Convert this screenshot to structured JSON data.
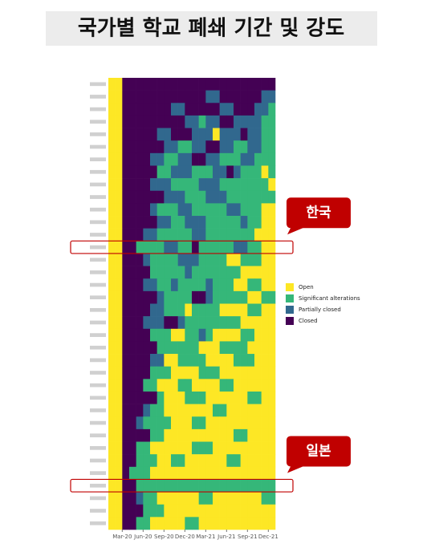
{
  "chart_data": {
    "type": "heatmap",
    "title": "국가별 학교 폐쇄 기간 및 강도",
    "categories": [
      null,
      null,
      null,
      null,
      null,
      null,
      null,
      null,
      null,
      null,
      null,
      null,
      null,
      null,
      null,
      null,
      null,
      null,
      null,
      null,
      null,
      null,
      null,
      null,
      null,
      null,
      null,
      null,
      null,
      null,
      null,
      null,
      null,
      null,
      null,
      null
    ],
    "levels": [
      {
        "name": "Open",
        "value": 0,
        "color": "#fde725"
      },
      {
        "name": "Significant alterations",
        "value": 1,
        "color": "#35b779"
      },
      {
        "name": "Partially closed",
        "value": 2,
        "color": "#31688e"
      },
      {
        "name": "Closed",
        "value": 3,
        "color": "#440154"
      }
    ],
    "rows": [
      [
        0,
        0,
        3,
        3,
        3,
        3,
        3,
        3,
        3,
        3,
        3,
        3,
        3,
        3,
        3,
        3,
        3,
        3,
        3,
        3,
        3,
        3,
        3,
        3
      ],
      [
        0,
        0,
        3,
        3,
        3,
        3,
        3,
        3,
        3,
        3,
        3,
        3,
        3,
        3,
        2,
        2,
        3,
        3,
        3,
        3,
        3,
        3,
        2,
        2
      ],
      [
        0,
        0,
        3,
        3,
        3,
        3,
        3,
        3,
        3,
        2,
        2,
        3,
        3,
        3,
        3,
        3,
        2,
        2,
        3,
        3,
        3,
        2,
        2,
        1
      ],
      [
        0,
        0,
        3,
        3,
        3,
        3,
        3,
        3,
        3,
        3,
        3,
        2,
        2,
        1,
        2,
        2,
        3,
        3,
        2,
        2,
        2,
        2,
        1,
        1
      ],
      [
        0,
        0,
        3,
        3,
        3,
        3,
        3,
        2,
        2,
        3,
        3,
        3,
        2,
        2,
        2,
        0,
        2,
        2,
        2,
        3,
        2,
        2,
        1,
        1
      ],
      [
        0,
        0,
        3,
        3,
        3,
        3,
        3,
        3,
        2,
        2,
        1,
        1,
        2,
        2,
        3,
        3,
        2,
        2,
        1,
        1,
        2,
        2,
        1,
        1
      ],
      [
        0,
        0,
        3,
        3,
        3,
        3,
        2,
        2,
        1,
        1,
        2,
        2,
        3,
        3,
        2,
        2,
        1,
        1,
        1,
        2,
        2,
        1,
        1,
        1
      ],
      [
        0,
        0,
        3,
        3,
        3,
        3,
        3,
        1,
        1,
        2,
        2,
        2,
        1,
        1,
        1,
        2,
        2,
        3,
        2,
        1,
        1,
        1,
        0,
        1
      ],
      [
        0,
        0,
        3,
        3,
        3,
        3,
        2,
        2,
        2,
        1,
        1,
        1,
        1,
        2,
        2,
        2,
        1,
        1,
        1,
        1,
        1,
        1,
        1,
        0
      ],
      [
        0,
        0,
        3,
        3,
        3,
        3,
        3,
        3,
        2,
        2,
        2,
        1,
        1,
        1,
        2,
        2,
        2,
        1,
        1,
        1,
        1,
        1,
        1,
        1
      ],
      [
        0,
        0,
        3,
        3,
        3,
        3,
        2,
        1,
        1,
        1,
        2,
        2,
        1,
        1,
        1,
        1,
        1,
        2,
        2,
        1,
        1,
        1,
        0,
        0
      ],
      [
        0,
        0,
        3,
        3,
        3,
        3,
        3,
        2,
        2,
        1,
        1,
        2,
        2,
        2,
        1,
        1,
        1,
        1,
        1,
        2,
        1,
        1,
        0,
        0
      ],
      [
        0,
        0,
        3,
        3,
        3,
        2,
        2,
        1,
        1,
        1,
        1,
        1,
        2,
        2,
        1,
        1,
        1,
        1,
        1,
        1,
        1,
        0,
        0,
        0
      ],
      [
        0,
        0,
        3,
        3,
        1,
        1,
        1,
        1,
        2,
        2,
        1,
        1,
        3,
        1,
        1,
        1,
        1,
        1,
        2,
        2,
        1,
        1,
        0,
        0
      ],
      [
        0,
        0,
        3,
        3,
        3,
        2,
        1,
        1,
        1,
        1,
        2,
        2,
        2,
        1,
        1,
        1,
        1,
        0,
        0,
        1,
        1,
        1,
        0,
        0
      ],
      [
        0,
        0,
        3,
        3,
        3,
        3,
        1,
        1,
        1,
        1,
        1,
        2,
        1,
        1,
        1,
        1,
        1,
        1,
        1,
        0,
        0,
        0,
        0,
        0
      ],
      [
        0,
        0,
        3,
        3,
        3,
        2,
        2,
        1,
        1,
        2,
        1,
        1,
        1,
        1,
        2,
        1,
        1,
        1,
        0,
        0,
        1,
        1,
        0,
        0
      ],
      [
        0,
        0,
        3,
        3,
        3,
        3,
        3,
        2,
        1,
        1,
        1,
        1,
        3,
        3,
        2,
        1,
        1,
        1,
        1,
        1,
        0,
        0,
        1,
        1
      ],
      [
        0,
        0,
        3,
        3,
        3,
        3,
        2,
        2,
        1,
        1,
        1,
        0,
        1,
        1,
        1,
        1,
        0,
        0,
        0,
        0,
        1,
        1,
        0,
        0
      ],
      [
        0,
        0,
        3,
        3,
        3,
        2,
        2,
        2,
        3,
        3,
        2,
        1,
        1,
        1,
        1,
        1,
        1,
        1,
        1,
        0,
        0,
        0,
        0,
        0
      ],
      [
        0,
        0,
        3,
        3,
        3,
        3,
        1,
        1,
        1,
        0,
        0,
        1,
        1,
        2,
        1,
        0,
        0,
        0,
        0,
        1,
        1,
        0,
        0,
        0
      ],
      [
        0,
        0,
        3,
        3,
        3,
        3,
        3,
        1,
        1,
        1,
        1,
        1,
        1,
        0,
        0,
        0,
        1,
        1,
        1,
        1,
        0,
        0,
        0,
        0
      ],
      [
        0,
        0,
        3,
        3,
        3,
        3,
        2,
        2,
        0,
        0,
        1,
        1,
        1,
        1,
        0,
        0,
        0,
        0,
        1,
        1,
        1,
        0,
        0,
        0
      ],
      [
        0,
        0,
        3,
        3,
        3,
        3,
        1,
        1,
        1,
        0,
        0,
        0,
        0,
        1,
        1,
        1,
        0,
        0,
        0,
        0,
        0,
        0,
        0,
        0
      ],
      [
        0,
        0,
        3,
        3,
        3,
        1,
        1,
        0,
        0,
        0,
        1,
        1,
        0,
        0,
        0,
        0,
        1,
        1,
        0,
        0,
        0,
        0,
        0,
        0
      ],
      [
        0,
        0,
        3,
        3,
        3,
        3,
        3,
        1,
        0,
        0,
        0,
        1,
        1,
        1,
        0,
        0,
        0,
        0,
        0,
        0,
        1,
        1,
        0,
        0
      ],
      [
        0,
        0,
        3,
        3,
        3,
        2,
        1,
        1,
        0,
        0,
        0,
        0,
        0,
        0,
        0,
        1,
        1,
        0,
        0,
        0,
        0,
        0,
        0,
        0
      ],
      [
        0,
        0,
        3,
        3,
        2,
        1,
        1,
        1,
        1,
        0,
        0,
        0,
        1,
        1,
        0,
        0,
        0,
        0,
        0,
        0,
        0,
        0,
        0,
        0
      ],
      [
        0,
        0,
        3,
        3,
        3,
        3,
        1,
        1,
        0,
        0,
        0,
        0,
        0,
        0,
        0,
        0,
        0,
        0,
        1,
        1,
        0,
        0,
        0,
        0
      ],
      [
        0,
        0,
        3,
        3,
        1,
        1,
        0,
        0,
        0,
        0,
        0,
        0,
        1,
        1,
        1,
        0,
        0,
        0,
        0,
        0,
        0,
        0,
        0,
        0
      ],
      [
        0,
        0,
        3,
        3,
        1,
        1,
        1,
        0,
        0,
        1,
        1,
        0,
        0,
        0,
        0,
        0,
        0,
        1,
        1,
        0,
        0,
        0,
        0,
        0
      ],
      [
        0,
        0,
        3,
        1,
        1,
        1,
        0,
        0,
        0,
        0,
        0,
        0,
        0,
        0,
        0,
        0,
        0,
        0,
        0,
        0,
        0,
        0,
        0,
        0
      ],
      [
        0,
        0,
        3,
        3,
        1,
        1,
        1,
        1,
        1,
        1,
        1,
        1,
        1,
        1,
        1,
        1,
        1,
        1,
        1,
        1,
        1,
        1,
        1,
        1
      ],
      [
        0,
        0,
        3,
        3,
        2,
        1,
        1,
        0,
        0,
        0,
        0,
        0,
        0,
        1,
        1,
        0,
        0,
        0,
        0,
        0,
        0,
        0,
        1,
        1
      ],
      [
        0,
        0,
        3,
        3,
        3,
        1,
        1,
        1,
        0,
        0,
        0,
        0,
        0,
        0,
        0,
        0,
        0,
        0,
        0,
        0,
        0,
        0,
        0,
        0
      ],
      [
        0,
        0,
        3,
        3,
        1,
        1,
        0,
        0,
        0,
        0,
        0,
        1,
        1,
        0,
        0,
        0,
        0,
        0,
        0,
        0,
        0,
        0,
        0,
        0
      ]
    ],
    "xlim": [
      0,
      24
    ],
    "xticks": [
      {
        "value": 2,
        "label": "Mar-20"
      },
      {
        "value": 5,
        "label": "Jun-20"
      },
      {
        "value": 8,
        "label": "Sep-20"
      },
      {
        "value": 11,
        "label": "Dec-20"
      },
      {
        "value": 14,
        "label": "Mar-21"
      },
      {
        "value": 17,
        "label": "Jun-21"
      },
      {
        "value": 20,
        "label": "Sep-21"
      },
      {
        "value": 23,
        "label": "Dec-21"
      }
    ],
    "annotations": [
      {
        "text": "한국",
        "row": 13
      },
      {
        "text": "일본",
        "row": 32
      }
    ]
  }
}
